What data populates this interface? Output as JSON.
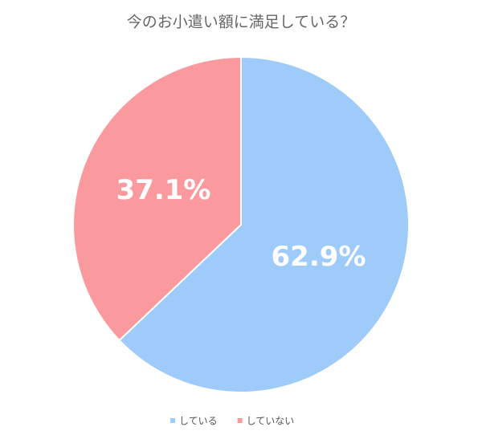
{
  "chart_data": {
    "type": "pie",
    "title": "今のお小遣い額に満足している？",
    "categories": [
      "している",
      "していない"
    ],
    "values": [
      62.9,
      37.1
    ],
    "value_labels": [
      "62.9%",
      "37.1%"
    ],
    "colors": [
      "#9ecbfa",
      "#fb9a9e"
    ]
  }
}
